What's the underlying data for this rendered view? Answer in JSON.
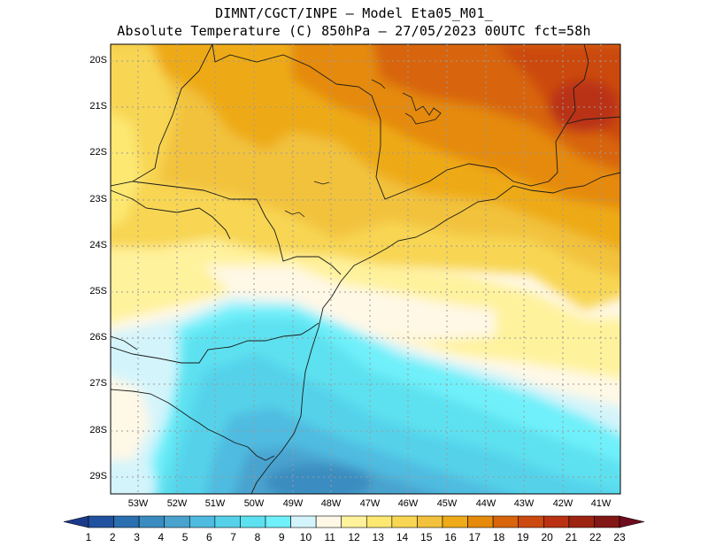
{
  "header": {
    "title_line1": "DIMNT/CGCT/INPE –  Model Eta05_M01_",
    "title_line2": "Absolute Temperature (C) 850hPa –  27/05/2023 00UTC fct=58h"
  },
  "map": {
    "lat_labels": [
      "20S",
      "21S",
      "22S",
      "23S",
      "24S",
      "25S",
      "26S",
      "27S",
      "28S",
      "29S"
    ],
    "lon_labels": [
      "53W",
      "52W",
      "51W",
      "50W",
      "49W",
      "48W",
      "47W",
      "46W",
      "45W",
      "44W",
      "43W",
      "42W",
      "41W"
    ]
  },
  "colorbar": {
    "labels": [
      "1",
      "2",
      "3",
      "4",
      "5",
      "6",
      "7",
      "8",
      "9",
      "10",
      "11",
      "12",
      "13",
      "14",
      "15",
      "16",
      "17",
      "18",
      "19",
      "20",
      "21",
      "22",
      "23"
    ],
    "colors": [
      "#1c3a8c",
      "#2152a0",
      "#2a6fb0",
      "#3a8cc0",
      "#4aa3cf",
      "#4fbbe0",
      "#55d2ea",
      "#5de1f0",
      "#6ff0fa",
      "#d4f4fb",
      "#fff8e6",
      "#fff29c",
      "#fde872",
      "#f8d653",
      "#f2c23c",
      "#eeaa18",
      "#e58a0b",
      "#d8650b",
      "#cc4a0f",
      "#ba3212",
      "#9e2412",
      "#831716",
      "#6e0c1e"
    ]
  }
}
